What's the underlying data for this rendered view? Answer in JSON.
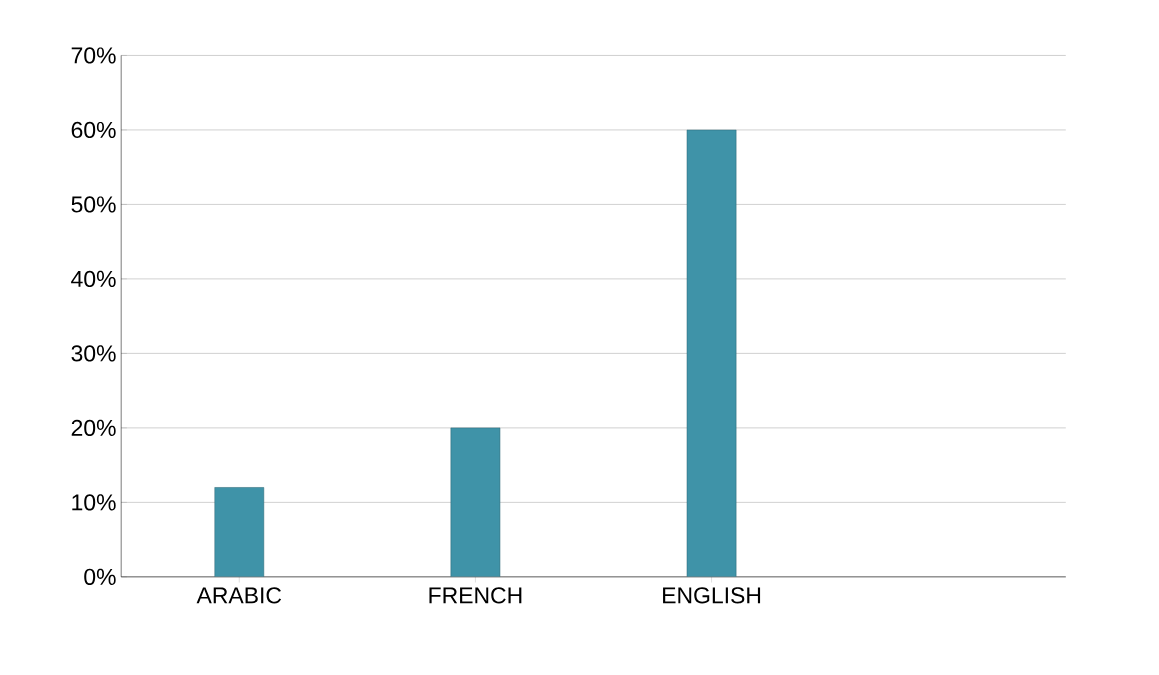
{
  "chart_data": {
    "type": "bar",
    "categories": [
      "ARABIC",
      "FRENCH",
      "ENGLISH"
    ],
    "values": [
      12,
      20,
      60
    ],
    "color": "#3f93a8",
    "ylim": [
      0,
      70
    ],
    "yticks": [
      {
        "value": 0,
        "label": "0%"
      },
      {
        "value": 10,
        "label": "10%"
      },
      {
        "value": 20,
        "label": "20%"
      },
      {
        "value": 30,
        "label": "30%"
      },
      {
        "value": 40,
        "label": "40%"
      },
      {
        "value": 50,
        "label": "50%"
      },
      {
        "value": 60,
        "label": "60%"
      },
      {
        "value": 70,
        "label": "70%"
      }
    ],
    "grid": "y"
  }
}
